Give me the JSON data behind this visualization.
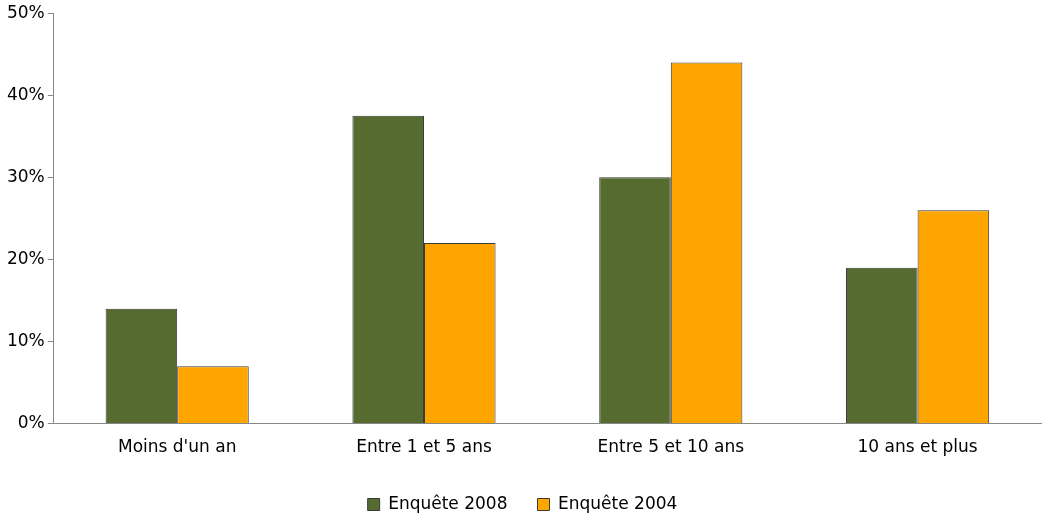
{
  "chart_data": {
    "type": "bar",
    "categories": [
      "Moins d'un an",
      "Entre 1 et 5 ans",
      "Entre 5 et 10 ans",
      "10 ans et plus"
    ],
    "series": [
      {
        "name": "Enquête 2008",
        "color": "#556b2f",
        "values": [
          14,
          37.5,
          30,
          19
        ]
      },
      {
        "name": "Enquête 2004",
        "color": "#ffa500",
        "values": [
          7,
          22,
          44,
          26
        ]
      }
    ],
    "ylim": [
      0,
      50
    ],
    "yticks": [
      {
        "value": 0,
        "label": "0%"
      },
      {
        "value": 10,
        "label": "10%"
      },
      {
        "value": 20,
        "label": "20%"
      },
      {
        "value": 30,
        "label": "30%"
      },
      {
        "value": 40,
        "label": "40%"
      },
      {
        "value": 50,
        "label": "50%"
      }
    ],
    "grid": false,
    "legend": "bottom"
  }
}
